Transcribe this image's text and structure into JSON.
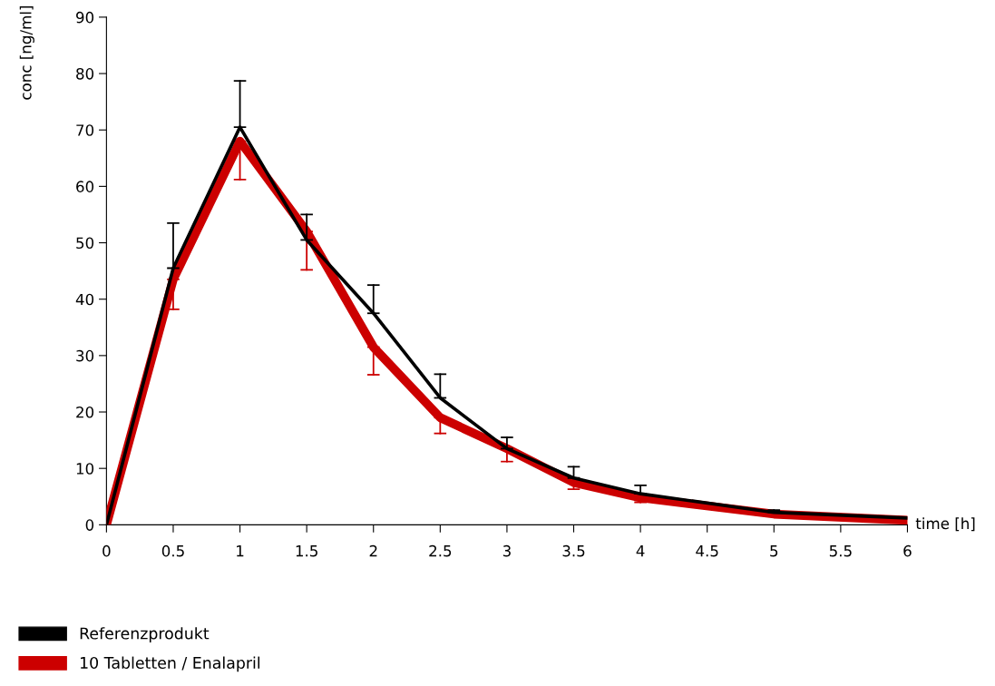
{
  "chart_data": {
    "type": "line",
    "xlabel": "time [h]",
    "ylabel": "conc [ng/ml]",
    "x": [
      0,
      0.5,
      1,
      1.5,
      2,
      2.5,
      3,
      3.5,
      4,
      5,
      6
    ],
    "xlim": [
      0,
      6
    ],
    "xticks": [
      0,
      0.5,
      1,
      1.5,
      2,
      2.5,
      3,
      3.5,
      4,
      4.5,
      5,
      5.5,
      6
    ],
    "ylim": [
      0,
      90
    ],
    "yticks": [
      0,
      10,
      20,
      30,
      40,
      50,
      60,
      70,
      80,
      90
    ],
    "grid": false,
    "legend": "bottom left",
    "marker": "none",
    "line_style": "solid",
    "series": [
      {
        "name": "Referenzprodukt",
        "color": "#000000",
        "values": [
          0,
          45.5,
          70.5,
          50.5,
          37.5,
          22.5,
          13.5,
          8.3,
          5.5,
          2.2,
          1.2
        ],
        "errors": [
          null,
          [
            45.5,
            53.5
          ],
          [
            70.5,
            78.7
          ],
          [
            50.5,
            55
          ],
          [
            37.5,
            42.5
          ],
          [
            22.5,
            26.7
          ],
          [
            13.5,
            15.5
          ],
          [
            8.3,
            10.3
          ],
          [
            5.5,
            7
          ],
          [
            2.2,
            2.6
          ],
          null
        ]
      },
      {
        "name": "10 Tabletten / Enalapril",
        "color": "#cc0000",
        "values": [
          0,
          43.5,
          68,
          52,
          31.5,
          19,
          13.5,
          7.5,
          4.8,
          1.9,
          0.8
        ],
        "errors": [
          null,
          [
            38.2,
            43.5
          ],
          [
            61.2,
            68
          ],
          [
            45.2,
            52
          ],
          [
            26.6,
            31.5
          ],
          [
            16.2,
            19
          ],
          [
            11.2,
            13.5
          ],
          [
            6.3,
            7.5
          ],
          [
            4,
            4.8
          ],
          [
            1.6,
            1.9
          ],
          null
        ]
      }
    ]
  }
}
